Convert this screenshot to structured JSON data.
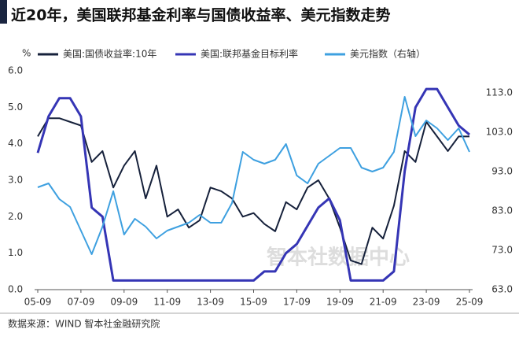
{
  "chart_data": {
    "type": "line",
    "title": "近20年，美国联邦基金利率与国债收益率、美元指数走势",
    "y_unit": "%",
    "source": "数据来源：WIND 智本社金融研究院",
    "watermark": "智本社数据中心",
    "categories": [
      "05-09",
      null,
      null,
      null,
      "07-09",
      null,
      null,
      null,
      "09-09",
      null,
      null,
      null,
      "11-09",
      null,
      null,
      null,
      "13-09",
      null,
      null,
      null,
      "15-09",
      null,
      null,
      null,
      "17-09",
      null,
      null,
      null,
      "19-09",
      null,
      null,
      null,
      "21-09",
      null,
      null,
      null,
      "23-09",
      null,
      null,
      null,
      "25-09"
    ],
    "ylim": [
      0,
      6
    ],
    "yticks": [
      {
        "value": 0,
        "label": "0.0"
      },
      {
        "value": 1,
        "label": "1.0"
      },
      {
        "value": 2,
        "label": "2.0"
      },
      {
        "value": 3,
        "label": "3.0"
      },
      {
        "value": 4,
        "label": "4.0"
      },
      {
        "value": 5,
        "label": "5.0"
      },
      {
        "value": 6,
        "label": "6.0"
      }
    ],
    "y2lim": [
      63,
      118.6
    ],
    "y2ticks": [
      {
        "value": 63,
        "label": "63.0"
      },
      {
        "value": 73,
        "label": "73.0"
      },
      {
        "value": 83,
        "label": "83.0"
      },
      {
        "value": 93,
        "label": "93.0"
      },
      {
        "value": 103,
        "label": "103.0"
      },
      {
        "value": 113,
        "label": "113.0"
      }
    ],
    "series": [
      {
        "name": "美国:国债收益率:10年",
        "color": "#16213b",
        "width": 2,
        "values": [
          4.2,
          4.7,
          4.7,
          4.6,
          4.5,
          3.5,
          3.8,
          2.8,
          3.4,
          3.8,
          2.5,
          3.4,
          2.0,
          2.2,
          1.7,
          1.9,
          2.8,
          2.7,
          2.5,
          2.0,
          2.1,
          1.8,
          1.6,
          2.4,
          2.2,
          2.8,
          3.0,
          2.5,
          1.7,
          0.8,
          0.7,
          1.7,
          1.4,
          2.3,
          3.8,
          3.5,
          4.6,
          4.2,
          3.8,
          4.2,
          4.2
        ]
      },
      {
        "name": "美国:联邦基金目标利率",
        "color": "#3535b5",
        "width": 3,
        "values": [
          3.75,
          4.75,
          5.25,
          5.25,
          4.75,
          2.25,
          2.0,
          0.25,
          0.25,
          0.25,
          0.25,
          0.25,
          0.25,
          0.25,
          0.25,
          0.25,
          0.25,
          0.25,
          0.25,
          0.25,
          0.25,
          0.5,
          0.5,
          1.0,
          1.25,
          1.75,
          2.25,
          2.5,
          1.9,
          0.25,
          0.25,
          0.25,
          0.25,
          0.5,
          3.25,
          5.0,
          5.5,
          5.5,
          5.0,
          4.5,
          4.25
        ]
      },
      {
        "name": "美元指数（右轴）",
        "color": "#3ea0e0",
        "width": 2,
        "axis": "y2",
        "values": [
          89,
          90,
          86,
          84,
          78,
          72,
          79,
          88,
          77,
          81,
          79,
          76,
          78,
          79,
          80,
          82,
          80,
          80,
          85,
          98,
          96,
          95,
          96,
          100,
          92,
          90,
          95,
          97,
          99,
          99,
          94,
          93,
          94,
          98,
          112,
          102,
          106,
          104,
          101,
          104,
          98
        ]
      }
    ]
  }
}
